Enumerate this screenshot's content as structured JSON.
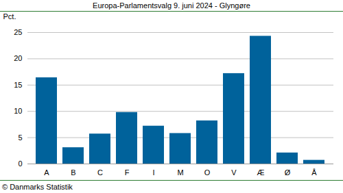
{
  "chart_data": {
    "type": "bar",
    "title": "Europa-Parlamentsvalg 9. juni 2024 - Glyngøre",
    "y_label": "Pct.",
    "caption": "© Danmarks Statistik",
    "categories": [
      "A",
      "B",
      "C",
      "F",
      "I",
      "M",
      "O",
      "V",
      "Æ",
      "Ø",
      "Å"
    ],
    "values": [
      16.4,
      3.1,
      5.7,
      9.8,
      7.2,
      5.8,
      8.2,
      17.2,
      24.3,
      2.1,
      0.7
    ],
    "color": "#00629b",
    "ylim": [
      0,
      25
    ],
    "yticks": [
      0,
      5,
      10,
      15,
      20,
      25
    ],
    "grid": true
  }
}
